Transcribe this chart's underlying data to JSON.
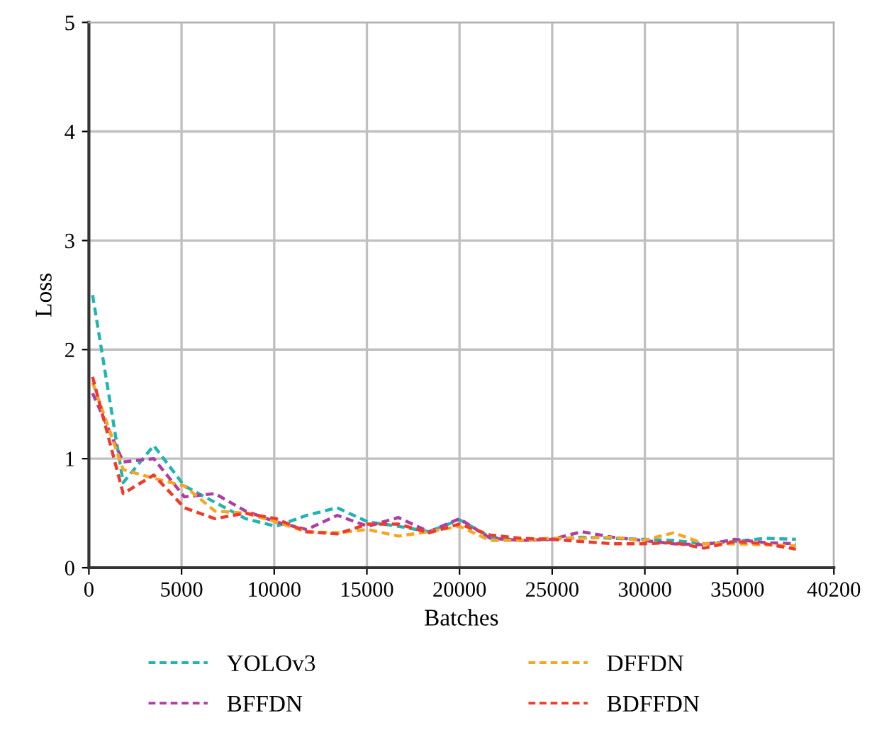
{
  "chart_data": {
    "type": "line",
    "xlabel": "Batches",
    "ylabel": "Loss",
    "line_style": "dashed",
    "marker": "none",
    "grid": true,
    "legend": "bottom",
    "x": [
      200,
      1850,
      3500,
      5150,
      6800,
      8450,
      10100,
      11750,
      13400,
      15050,
      16700,
      18350,
      20000,
      21650,
      23300,
      24950,
      26600,
      28250,
      29900,
      31550,
      33200,
      34850,
      36500,
      38150
    ],
    "xlim": [
      0,
      40200
    ],
    "xticks": [
      0,
      5000,
      10000,
      15000,
      20000,
      25000,
      30000,
      35000,
      40200
    ],
    "ylim": [
      0,
      5
    ],
    "yticks": [
      0,
      1,
      2,
      3,
      4,
      5
    ],
    "series": [
      {
        "name": "YOLOv3",
        "color": "#1fb5b0",
        "values": [
          2.5,
          0.78,
          1.12,
          0.75,
          0.6,
          0.45,
          0.38,
          0.48,
          0.55,
          0.42,
          0.38,
          0.33,
          0.44,
          0.28,
          0.25,
          0.26,
          0.28,
          0.27,
          0.26,
          0.25,
          0.22,
          0.24,
          0.27,
          0.26
        ]
      },
      {
        "name": "BFFDN",
        "color": "#b03ea0",
        "values": [
          1.6,
          0.97,
          1.0,
          0.65,
          0.68,
          0.52,
          0.42,
          0.35,
          0.48,
          0.38,
          0.46,
          0.33,
          0.45,
          0.27,
          0.25,
          0.26,
          0.33,
          0.28,
          0.25,
          0.22,
          0.21,
          0.26,
          0.23,
          0.22
        ]
      },
      {
        "name": "DFFDN",
        "color": "#f5a623",
        "values": [
          1.7,
          0.9,
          0.82,
          0.75,
          0.52,
          0.5,
          0.42,
          0.33,
          0.32,
          0.35,
          0.29,
          0.33,
          0.38,
          0.25,
          0.25,
          0.27,
          0.27,
          0.28,
          0.25,
          0.32,
          0.22,
          0.22,
          0.21,
          0.2
        ]
      },
      {
        "name": "BDFFDN",
        "color": "#ee3b2c",
        "values": [
          1.75,
          0.68,
          0.85,
          0.55,
          0.45,
          0.5,
          0.45,
          0.33,
          0.31,
          0.4,
          0.4,
          0.32,
          0.4,
          0.3,
          0.27,
          0.26,
          0.24,
          0.22,
          0.22,
          0.23,
          0.18,
          0.24,
          0.22,
          0.17
        ]
      }
    ]
  }
}
